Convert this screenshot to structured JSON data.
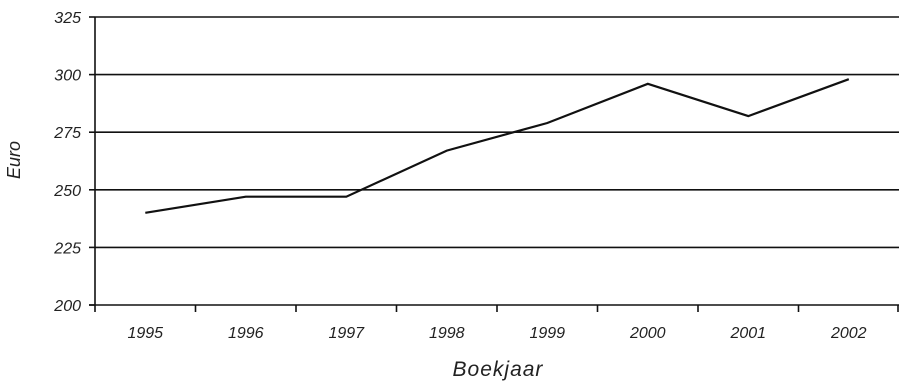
{
  "chart_data": {
    "type": "line",
    "title": "",
    "xlabel": "Boekjaar",
    "ylabel": "Euro",
    "x": [
      "1995",
      "1996",
      "1997",
      "1998",
      "1999",
      "2000",
      "2001",
      "2002"
    ],
    "series": [
      {
        "values": [
          240,
          247,
          247,
          267,
          279,
          296,
          282,
          298
        ]
      }
    ],
    "ylim": [
      200,
      325
    ],
    "yticks": [
      200,
      225,
      250,
      275,
      300,
      325
    ],
    "ytick_labels": [
      "200",
      "225",
      "250",
      "275",
      "300",
      "325"
    ],
    "grid": true,
    "legend": "none",
    "colors": {
      "line": "#111111",
      "grid": "#111111",
      "text": "#222222"
    }
  }
}
